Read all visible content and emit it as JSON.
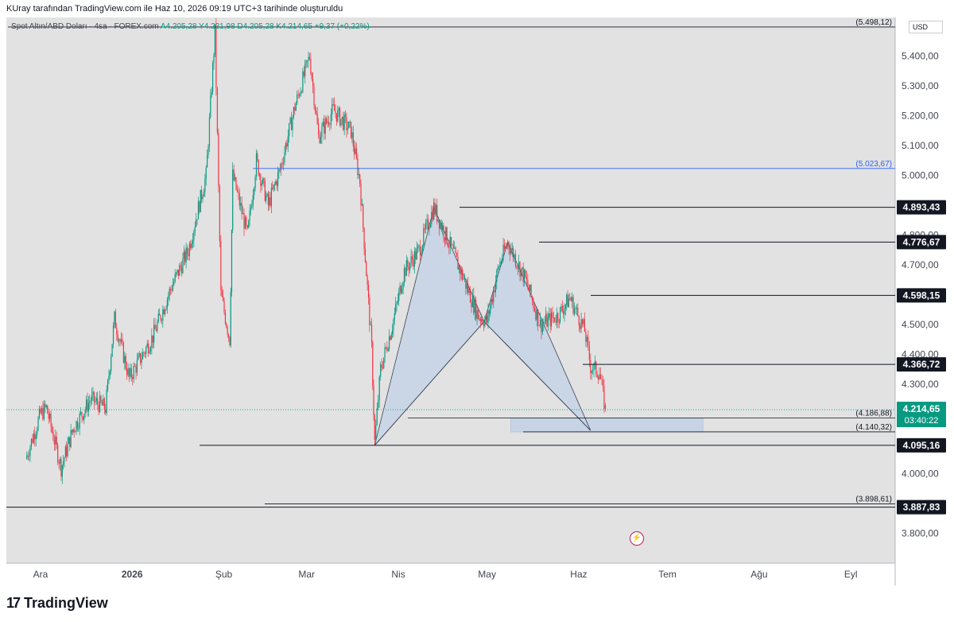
{
  "header": {
    "text": "KUray tarafından TradingView.com ile Haz 10, 2026 09:19 UTC+3 tarihinde oluşturuldu"
  },
  "legend": {
    "symbol": "Spot Altın/ABD Doları · 4sa · FOREX.com",
    "values": "A4.205,28  Y4.221,98  D4.205,28  K4.214,65  +9,37 (+0,22%)"
  },
  "currency": "USD",
  "footer": {
    "brand": "TradingView",
    "logo_glyph": "17"
  },
  "icons": {
    "flash": "flash-icon",
    "logo": "tradingview-logo-icon"
  },
  "colors": {
    "chart_bg": "#e2e2e2",
    "candle_up": "#089981",
    "candle_down": "#f23645",
    "pattern_fill": "#c6d4e6",
    "blue_line": "#2962ff",
    "current_price": "#089981"
  },
  "chart_data": {
    "type": "candlestick",
    "instrument": "Spot Altın/ABD Doları",
    "timeframe": "4sa",
    "ylim": [
      3700,
      5530
    ],
    "x_ticks": [
      "Ara",
      "2026",
      "Şub",
      "Mar",
      "Nis",
      "May",
      "Haz",
      "Tem",
      "Ağu",
      "Eyl"
    ],
    "y_ticks": [
      "5.400,00",
      "5.300,00",
      "5.200,00",
      "5.100,00",
      "5.000,00",
      "4.800,00",
      "4.700,00",
      "4.500,00",
      "4.400,00",
      "4.300,00",
      "4.000,00",
      "3.800,00"
    ],
    "y_tick_values": [
      5400,
      5300,
      5200,
      5100,
      5000,
      4800,
      4700,
      4500,
      4400,
      4300,
      4000,
      3800
    ],
    "ohlc": {
      "open": "4.205,28",
      "high": "4.221,98",
      "low": "4.205,28",
      "close": "4.214,65",
      "change": "+9,37 (+0,22%)"
    },
    "current_price": {
      "label": "4.214,65",
      "value": 4214.65,
      "countdown": "03:40:22"
    },
    "price_path": [
      [
        "2025-11-26",
        4050
      ],
      [
        "2025-12-01",
        4200
      ],
      [
        "2025-12-03",
        4220
      ],
      [
        "2025-12-08",
        4020
      ],
      [
        "2025-12-12",
        4150
      ],
      [
        "2025-12-18",
        4250
      ],
      [
        "2025-12-23",
        4220
      ],
      [
        "2025-12-26",
        4520
      ],
      [
        "2025-12-31",
        4320
      ],
      [
        "2026-01-08",
        4460
      ],
      [
        "2026-01-14",
        4620
      ],
      [
        "2026-01-20",
        4750
      ],
      [
        "2026-01-26",
        5000
      ],
      [
        "2026-01-29",
        5480
      ],
      [
        "2026-01-31",
        4600
      ],
      [
        "2026-02-03",
        4450
      ],
      [
        "2026-02-04",
        5000
      ],
      [
        "2026-02-09",
        4800
      ],
      [
        "2026-02-12",
        5050
      ],
      [
        "2026-02-16",
        4900
      ],
      [
        "2026-02-20",
        5020
      ],
      [
        "2026-02-25",
        5230
      ],
      [
        "2026-03-02",
        5400
      ],
      [
        "2026-03-05",
        5130
      ],
      [
        "2026-03-10",
        5220
      ],
      [
        "2026-03-16",
        5150
      ],
      [
        "2026-03-19",
        4980
      ],
      [
        "2026-03-23",
        4420
      ],
      [
        "2026-03-24",
        4105
      ],
      [
        "2026-03-26",
        4350
      ],
      [
        "2026-03-30",
        4500
      ],
      [
        "2026-04-03",
        4680
      ],
      [
        "2026-04-08",
        4750
      ],
      [
        "2026-04-13",
        4893
      ],
      [
        "2026-04-20",
        4730
      ],
      [
        "2026-04-28",
        4530
      ],
      [
        "2026-05-01",
        4510
      ],
      [
        "2026-05-05",
        4700
      ],
      [
        "2026-05-08",
        4776
      ],
      [
        "2026-05-14",
        4650
      ],
      [
        "2026-05-19",
        4500
      ],
      [
        "2026-05-25",
        4530
      ],
      [
        "2026-05-29",
        4590
      ],
      [
        "2026-06-03",
        4480
      ],
      [
        "2026-06-05",
        4360
      ],
      [
        "2026-06-08",
        4340
      ],
      [
        "2026-06-10",
        4214.65
      ]
    ],
    "horizontal_levels": [
      {
        "label": "(5.498,12)",
        "value": 5498.12,
        "style": "thin"
      },
      {
        "label": "(5.023,67)",
        "value": 5023.67,
        "style": "blue"
      },
      {
        "label": "4.893,43",
        "value": 4893.43,
        "style": "badge"
      },
      {
        "label": "4.776,67",
        "value": 4776.67,
        "style": "badge"
      },
      {
        "label": "4.598,15",
        "value": 4598.15,
        "style": "badge"
      },
      {
        "label": "4.366,72",
        "value": 4366.72,
        "style": "badge"
      },
      {
        "label": "(4.186,88)",
        "value": 4186.88,
        "style": "thin"
      },
      {
        "label": "(4.140,32)",
        "value": 4140.32,
        "style": "thin"
      },
      {
        "label": "4.095,16",
        "value": 4095.16,
        "style": "badge"
      },
      {
        "label": "(3.898,61)",
        "value": 3898.61,
        "style": "thin"
      },
      {
        "label": "3.887,83",
        "value": 3887.83,
        "style": "badge"
      }
    ],
    "harmonic_pattern": {
      "points": [
        [
          "2026-03-24",
          4095
        ],
        [
          "2026-04-13",
          4893
        ],
        [
          "2026-04-30",
          4510
        ],
        [
          "2026-05-08",
          4776
        ],
        [
          "2026-06-05",
          4145
        ]
      ]
    },
    "target_zone": {
      "from": "2026-05-09",
      "to": "2026-07-13",
      "price_low": 4140,
      "price_high": 4186
    }
  }
}
